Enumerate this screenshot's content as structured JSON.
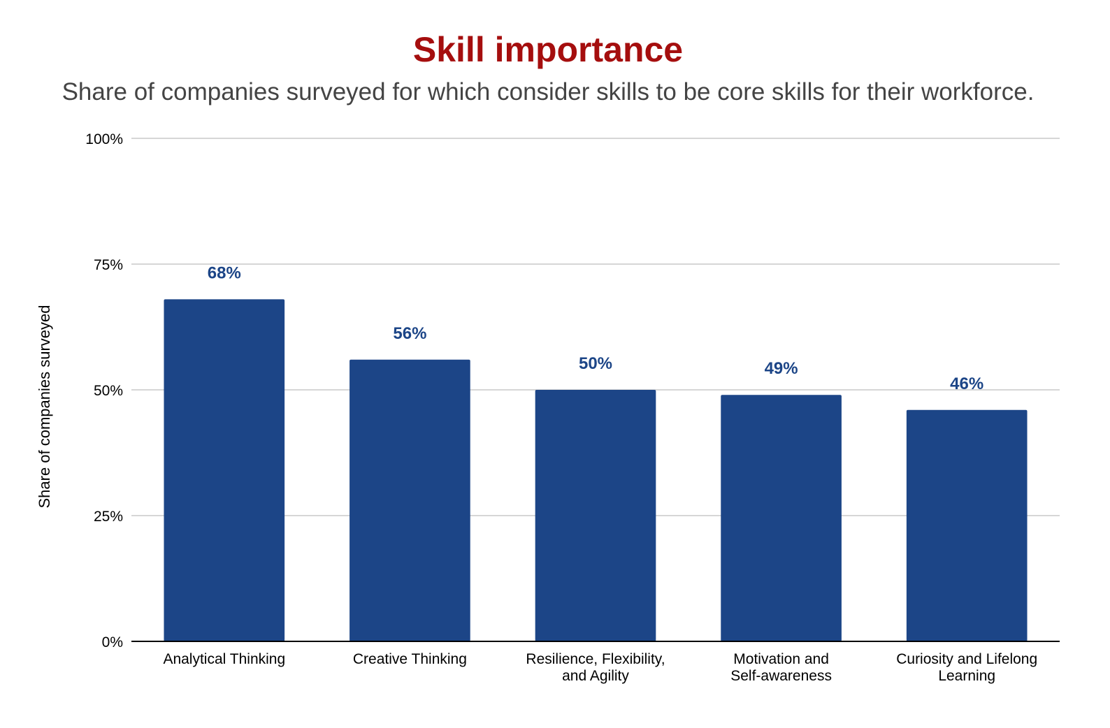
{
  "chart_data": {
    "type": "bar",
    "title": "Skill importance",
    "subtitle": "Share of companies surveyed for which consider skills to be core skills for their workforce.",
    "ylabel": "Share of companies surveyed",
    "xlabel": "",
    "ylim": [
      0,
      100
    ],
    "yticks": [
      {
        "value": 0,
        "label": "0%"
      },
      {
        "value": 25,
        "label": "25%"
      },
      {
        "value": 50,
        "label": "50%"
      },
      {
        "value": 75,
        "label": "75%"
      },
      {
        "value": 100,
        "label": "100%"
      }
    ],
    "grid": true,
    "legend": "none",
    "bar_color": "#1c4587",
    "title_color": "#a50e0e",
    "categories": [
      [
        "Analytical Thinking"
      ],
      [
        "Creative Thinking"
      ],
      [
        "Resilience, Flexibility,",
        "and Agility"
      ],
      [
        "Motivation and",
        "Self-awareness"
      ],
      [
        "Curiosity and Lifelong",
        "Learning"
      ]
    ],
    "values": [
      68,
      56,
      50,
      49,
      46
    ],
    "data_labels": [
      "68%",
      "56%",
      "50%",
      "49%",
      "46%"
    ]
  }
}
